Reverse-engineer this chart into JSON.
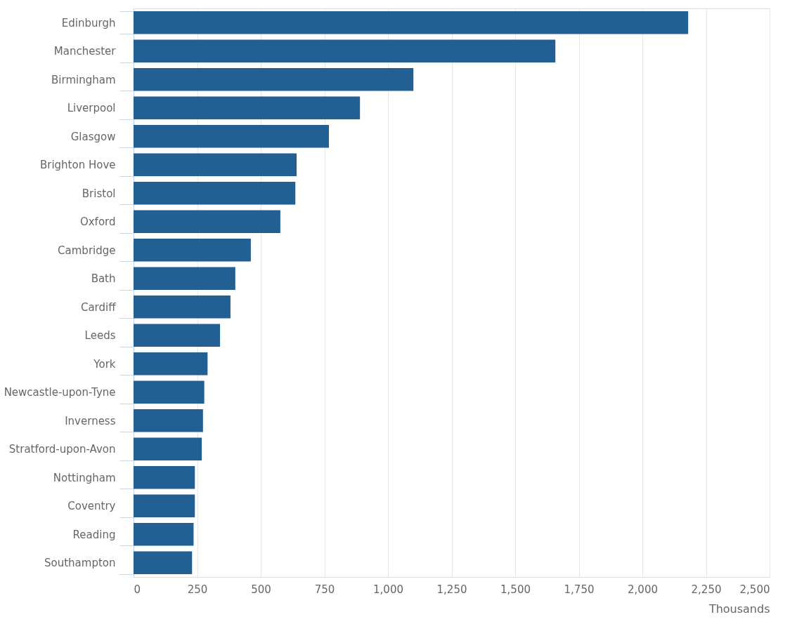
{
  "chart_data": {
    "type": "bar",
    "orientation": "horizontal",
    "xlabel": "Thousands",
    "categories": [
      "Edinburgh",
      "Manchester",
      "Birmingham",
      "Liverpool",
      "Glasgow",
      "Brighton Hove",
      "Bristol",
      "Oxford",
      "Cambridge",
      "Bath",
      "Cardiff",
      "Leeds",
      "York",
      "Newcastle-upon-Tyne",
      "Inverness",
      "Stratford-upon-Avon",
      "Nottingham",
      "Coventry",
      "Reading",
      "Southampton"
    ],
    "values": [
      2180,
      1658,
      1100,
      890,
      768,
      641,
      636,
      577,
      461,
      400,
      381,
      340,
      291,
      278,
      273,
      268,
      241,
      241,
      236,
      230
    ],
    "color": "#225f92",
    "xlim": [
      0,
      2500
    ],
    "xticks": [
      0,
      {
        "value": 250,
        "label": "250"
      },
      {
        "value": 500,
        "label": "500"
      },
      {
        "value": 750,
        "label": "750"
      },
      {
        "value": 1000,
        "label": "1,000"
      },
      {
        "value": 1250,
        "label": "1,250"
      },
      {
        "value": 1500,
        "label": "1,500"
      },
      {
        "value": 1750,
        "label": "1,750"
      },
      {
        "value": 2000,
        "label": "2,000"
      },
      {
        "value": 2250,
        "label": "2,250"
      },
      {
        "value": 2500,
        "label": "2,500"
      }
    ],
    "grid": "x"
  }
}
